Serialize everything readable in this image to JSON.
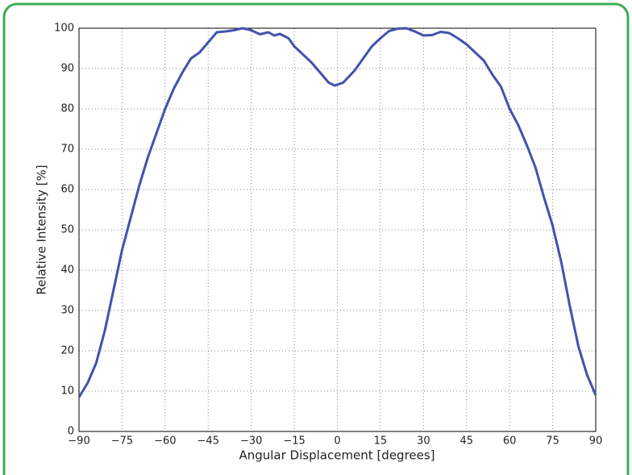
{
  "chart_data": {
    "type": "line",
    "xlabel": "Angular Displacement [degrees]",
    "ylabel": "Relative Intensity [%]",
    "x": [
      -90,
      -87,
      -84,
      -81,
      -78,
      -75,
      -72,
      -69,
      -66,
      -63,
      -60,
      -57,
      -54,
      -51,
      -48,
      -45,
      -42,
      -39,
      -36,
      -33,
      -30,
      -27,
      -24,
      -22,
      -20,
      -17,
      -15,
      -12,
      -9,
      -6,
      -3,
      -1,
      0,
      2,
      4,
      6,
      9,
      12,
      15,
      18,
      21,
      24,
      27,
      30,
      33,
      36,
      39,
      42,
      45,
      48,
      51,
      54,
      57,
      60,
      63,
      66,
      69,
      72,
      75,
      78,
      81,
      84,
      87,
      90
    ],
    "series": [
      {
        "color": "#4252ad",
        "values": [
          8.5,
          12,
          17,
          25,
          35,
          45,
          53,
          61,
          68,
          74,
          80,
          85,
          89,
          92.5,
          94,
          96.5,
          99,
          99.2,
          99.5,
          100,
          99.5,
          98.5,
          99,
          98.2,
          98.6,
          97.5,
          95.5,
          93.5,
          91.5,
          89,
          86.5,
          85.8,
          86,
          86.5,
          88,
          89.5,
          92.5,
          95.5,
          97.5,
          99.3,
          99.9,
          100,
          99.2,
          98.2,
          98.3,
          99.1,
          98.8,
          97.5,
          96,
          94,
          92,
          88.5,
          85.5,
          80,
          76,
          71,
          65.5,
          58,
          51,
          42,
          31,
          21,
          14,
          9
        ]
      }
    ],
    "xlim": [
      -90,
      90
    ],
    "xticks": [
      {
        "value": -90,
        "label": "−90"
      },
      {
        "value": -75,
        "label": "−75"
      },
      {
        "value": -60,
        "label": "−60"
      },
      {
        "value": -45,
        "label": "−45"
      },
      {
        "value": -30,
        "label": "−30"
      },
      {
        "value": -15,
        "label": "−15"
      },
      0,
      15,
      30,
      45,
      60,
      75,
      90
    ],
    "ylim": [
      0,
      100
    ],
    "yticks": [
      0,
      10,
      20,
      30,
      40,
      50,
      60,
      70,
      80,
      90,
      100
    ],
    "grid": true
  }
}
